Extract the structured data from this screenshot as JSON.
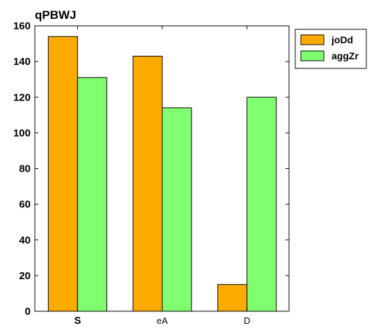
{
  "chart_data": {
    "type": "bar",
    "title": "qPBWJ",
    "categories": [
      "S",
      "eA",
      "D"
    ],
    "bold_categories": [
      "S"
    ],
    "series": [
      {
        "name": "joDd",
        "color": "#ffaa00",
        "values": [
          154,
          143,
          15
        ]
      },
      {
        "name": "aggZr",
        "color": "#80ff70",
        "values": [
          131,
          114,
          120
        ]
      }
    ],
    "ylim": [
      0,
      160
    ],
    "yticks": [
      0,
      20,
      40,
      60,
      80,
      100,
      120,
      140,
      160
    ],
    "xlabel": "",
    "ylabel": "",
    "grid": false,
    "legend": "outside-top-right"
  }
}
